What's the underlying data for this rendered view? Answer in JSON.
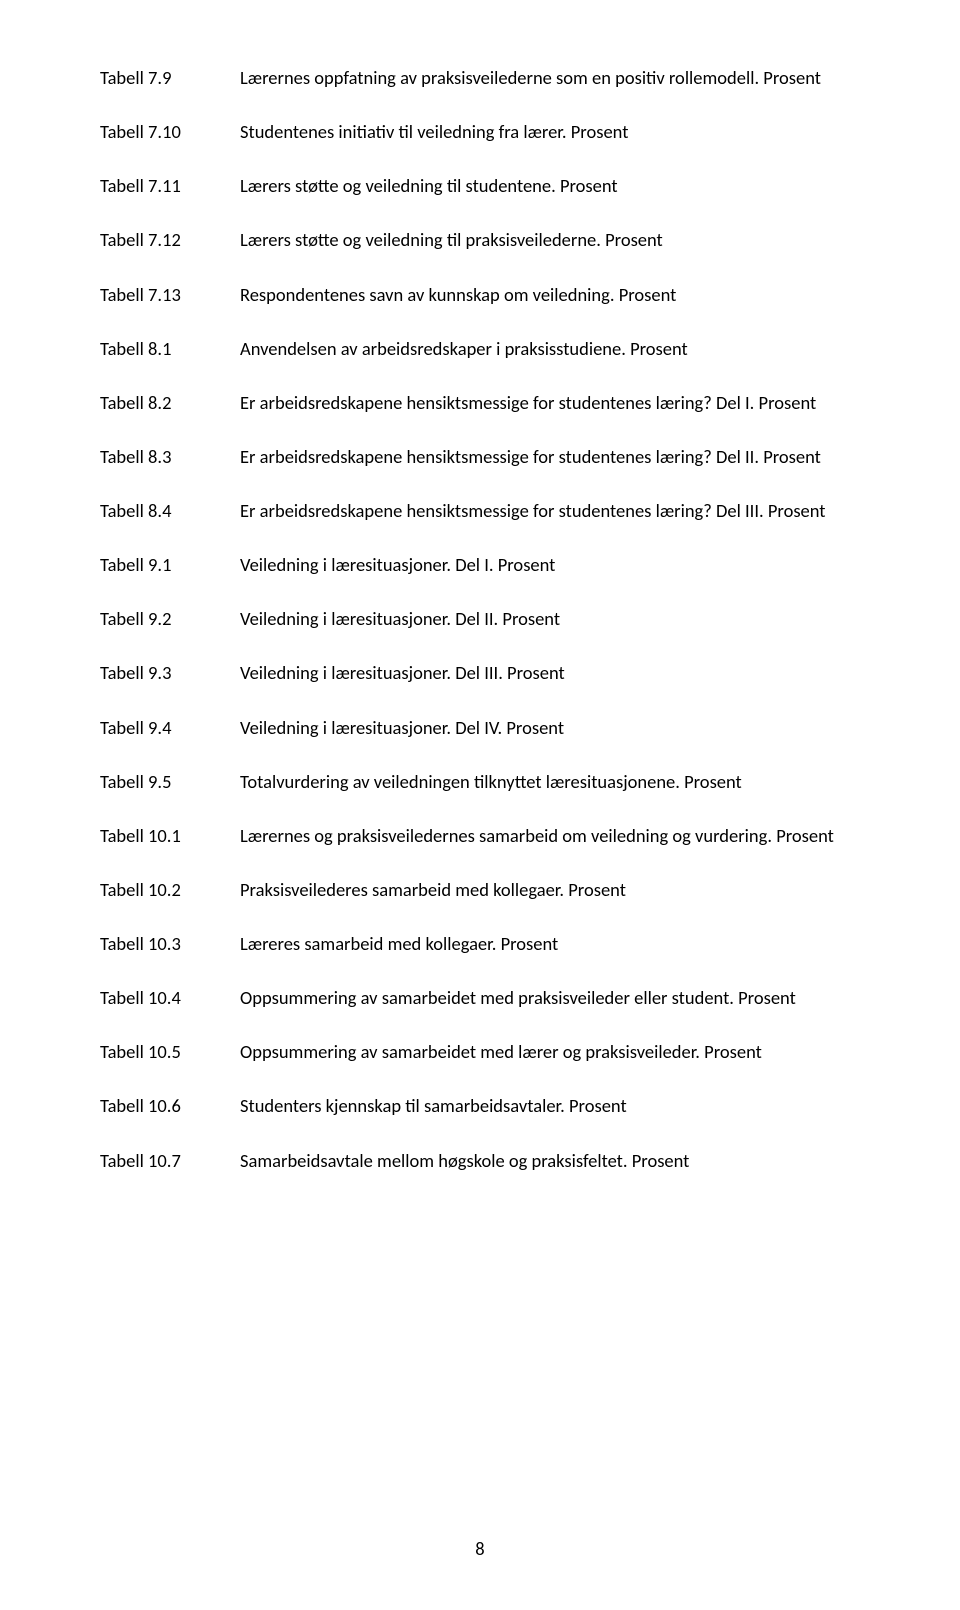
{
  "entries": [
    {
      "label": "Tabell 7.9",
      "desc": "Lærernes oppfatning av praksisveilederne som en positiv rollemodell. Prosent"
    },
    {
      "label": "Tabell 7.10",
      "desc": "Studentenes initiativ til veiledning fra lærer. Prosent"
    },
    {
      "label": "Tabell 7.11",
      "desc": "Lærers støtte og veiledning til studentene. Prosent"
    },
    {
      "label": "Tabell 7.12",
      "desc": "Lærers støtte og veiledning til praksisveilederne. Prosent"
    },
    {
      "label": "Tabell 7.13",
      "desc": "Respondentenes savn av kunnskap om veiledning. Prosent"
    },
    {
      "label": "Tabell 8.1",
      "desc": "Anvendelsen av arbeidsredskaper i praksisstudiene. Prosent"
    },
    {
      "label": "Tabell 8.2",
      "desc": "Er arbeidsredskapene hensiktsmessige for studentenes læring? Del I. Prosent"
    },
    {
      "label": "Tabell 8.3",
      "desc": "Er arbeidsredskapene hensiktsmessige for studentenes læring? Del II. Prosent"
    },
    {
      "label": "Tabell 8.4",
      "desc": "Er arbeidsredskapene hensiktsmessige for studentenes læring? Del III. Prosent"
    },
    {
      "label": "Tabell 9.1",
      "desc": "Veiledning i læresituasjoner. Del I. Prosent"
    },
    {
      "label": "Tabell 9.2",
      "desc": "Veiledning i læresituasjoner. Del II. Prosent"
    },
    {
      "label": "Tabell 9.3",
      "desc": "Veiledning i læresituasjoner. Del III. Prosent"
    },
    {
      "label": "Tabell 9.4",
      "desc": "Veiledning i læresituasjoner. Del IV. Prosent"
    },
    {
      "label": "Tabell 9.5",
      "desc": "Totalvurdering av veiledningen tilknyttet læresituasjonene. Prosent"
    },
    {
      "label": "Tabell 10.1",
      "desc": "Lærernes og praksisveiledernes samarbeid om veiledning og vurdering. Prosent"
    },
    {
      "label": "Tabell 10.2",
      "desc": "Praksisveilederes samarbeid med kollegaer. Prosent"
    },
    {
      "label": "Tabell 10.3",
      "desc": "Læreres samarbeid med kollegaer. Prosent"
    },
    {
      "label": "Tabell 10.4",
      "desc": "Oppsummering av samarbeidet med praksisveileder eller student. Prosent"
    },
    {
      "label": "Tabell 10.5",
      "desc": "Oppsummering av samarbeidet med lærer og praksisveileder. Prosent"
    },
    {
      "label": "Tabell 10.6",
      "desc": "Studenters kjennskap til samarbeidsavtaler. Prosent"
    },
    {
      "label": "Tabell 10.7",
      "desc": "Samarbeidsavtale mellom høgskole og praksisfeltet. Prosent"
    }
  ],
  "page_number": "8"
}
